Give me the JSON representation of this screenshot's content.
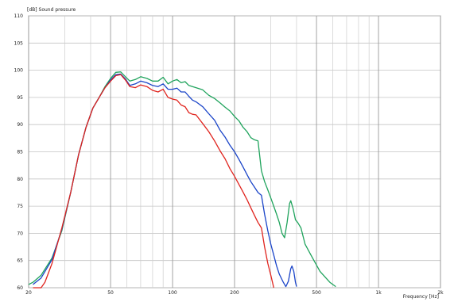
{
  "chart_data": {
    "type": "line",
    "ylabel": "[dB]  Sound pressure",
    "xlabel": "Frequency  [Hz]",
    "x_scale": "log",
    "xlim": [
      20,
      2000
    ],
    "ylim": [
      60,
      110
    ],
    "grid": true,
    "legend": "none",
    "y_ticks": [
      "110",
      "105",
      "100",
      "95",
      "90",
      "85",
      "80",
      "75",
      "70",
      "65",
      "60"
    ],
    "x_ticks": [
      {
        "value": 20,
        "label": "20"
      },
      {
        "value": 50,
        "label": "50"
      },
      {
        "value": 100,
        "label": "100"
      },
      {
        "value": 200,
        "label": "200"
      },
      {
        "value": 500,
        "label": "500"
      },
      {
        "value": 1000,
        "label": "1k"
      },
      {
        "value": 2000,
        "label": "2k"
      }
    ],
    "series": [
      {
        "color": "#1fa35c",
        "points": [
          [
            20,
            60.6
          ],
          [
            21,
            61.0
          ],
          [
            23,
            62.3
          ],
          [
            26,
            65.5
          ],
          [
            29,
            70.5
          ],
          [
            32,
            77.5
          ],
          [
            35,
            84.5
          ],
          [
            38,
            89.5
          ],
          [
            41,
            93.0
          ],
          [
            44,
            95.0
          ],
          [
            47,
            97.0
          ],
          [
            50,
            98.5
          ],
          [
            53,
            99.6
          ],
          [
            56,
            99.7
          ],
          [
            59,
            98.8
          ],
          [
            62,
            98.0
          ],
          [
            66,
            98.3
          ],
          [
            70,
            98.8
          ],
          [
            75,
            98.5
          ],
          [
            80,
            98.0
          ],
          [
            85,
            98.0
          ],
          [
            90,
            98.7
          ],
          [
            95,
            97.5
          ],
          [
            100,
            98.0
          ],
          [
            105,
            98.3
          ],
          [
            110,
            97.7
          ],
          [
            115,
            97.9
          ],
          [
            120,
            97.2
          ],
          [
            125,
            97.0
          ],
          [
            130,
            96.8
          ],
          [
            140,
            96.4
          ],
          [
            150,
            95.4
          ],
          [
            160,
            94.8
          ],
          [
            170,
            94.0
          ],
          [
            180,
            93.2
          ],
          [
            190,
            92.5
          ],
          [
            200,
            91.5
          ],
          [
            210,
            90.7
          ],
          [
            220,
            89.5
          ],
          [
            230,
            88.7
          ],
          [
            240,
            87.6
          ],
          [
            250,
            87.2
          ],
          [
            260,
            87.0
          ],
          [
            270,
            81.5
          ],
          [
            280,
            79.5
          ],
          [
            290,
            78.0
          ],
          [
            300,
            76.5
          ],
          [
            310,
            75.0
          ],
          [
            320,
            73.5
          ],
          [
            330,
            72.0
          ],
          [
            340,
            70.0
          ],
          [
            350,
            69.2
          ],
          [
            360,
            72.0
          ],
          [
            370,
            75.5
          ],
          [
            375,
            76.0
          ],
          [
            385,
            74.5
          ],
          [
            395,
            72.5
          ],
          [
            405,
            72.0
          ],
          [
            420,
            71.0
          ],
          [
            440,
            68.0
          ],
          [
            470,
            66.0
          ],
          [
            520,
            63.0
          ],
          [
            580,
            61.0
          ],
          [
            620,
            60.2
          ]
        ]
      },
      {
        "color": "#1a44c8",
        "points": [
          [
            21,
            60.6
          ],
          [
            23,
            61.8
          ],
          [
            26,
            65.2
          ],
          [
            29,
            70.8
          ],
          [
            32,
            77.5
          ],
          [
            35,
            84.5
          ],
          [
            38,
            89.5
          ],
          [
            41,
            93.0
          ],
          [
            44,
            95.0
          ],
          [
            47,
            96.8
          ],
          [
            50,
            98.2
          ],
          [
            53,
            99.2
          ],
          [
            56,
            99.3
          ],
          [
            59,
            98.4
          ],
          [
            62,
            97.2
          ],
          [
            66,
            97.5
          ],
          [
            70,
            98.0
          ],
          [
            75,
            97.7
          ],
          [
            80,
            97.2
          ],
          [
            85,
            97.0
          ],
          [
            90,
            97.5
          ],
          [
            95,
            96.5
          ],
          [
            100,
            96.5
          ],
          [
            105,
            96.7
          ],
          [
            110,
            96.0
          ],
          [
            115,
            96.0
          ],
          [
            120,
            95.2
          ],
          [
            125,
            94.5
          ],
          [
            130,
            94.2
          ],
          [
            140,
            93.3
          ],
          [
            150,
            92.0
          ],
          [
            160,
            90.8
          ],
          [
            170,
            89.0
          ],
          [
            180,
            87.7
          ],
          [
            190,
            86.2
          ],
          [
            200,
            85.0
          ],
          [
            210,
            83.6
          ],
          [
            220,
            82.2
          ],
          [
            230,
            80.8
          ],
          [
            240,
            79.5
          ],
          [
            250,
            78.5
          ],
          [
            260,
            77.5
          ],
          [
            270,
            77.0
          ],
          [
            280,
            73.5
          ],
          [
            290,
            70.5
          ],
          [
            300,
            68.0
          ],
          [
            310,
            66.0
          ],
          [
            320,
            64.0
          ],
          [
            330,
            62.5
          ],
          [
            345,
            61.0
          ],
          [
            355,
            60.2
          ],
          [
            365,
            61.2
          ],
          [
            375,
            63.5
          ],
          [
            380,
            64.0
          ],
          [
            388,
            63.0
          ],
          [
            395,
            61.0
          ],
          [
            400,
            60.2
          ]
        ]
      },
      {
        "color": "#e0241e",
        "points": [
          [
            21,
            60.0
          ],
          [
            23,
            60.0
          ],
          [
            24,
            61.0
          ],
          [
            26,
            64.5
          ],
          [
            29,
            71.0
          ],
          [
            32,
            77.5
          ],
          [
            35,
            84.5
          ],
          [
            38,
            89.5
          ],
          [
            41,
            93.0
          ],
          [
            44,
            95.0
          ],
          [
            47,
            96.8
          ],
          [
            50,
            98.0
          ],
          [
            53,
            99.0
          ],
          [
            56,
            99.2
          ],
          [
            59,
            98.2
          ],
          [
            62,
            97.0
          ],
          [
            66,
            96.8
          ],
          [
            70,
            97.3
          ],
          [
            75,
            97.0
          ],
          [
            80,
            96.3
          ],
          [
            85,
            96.0
          ],
          [
            90,
            96.5
          ],
          [
            95,
            95.0
          ],
          [
            100,
            94.7
          ],
          [
            105,
            94.5
          ],
          [
            110,
            93.6
          ],
          [
            115,
            93.3
          ],
          [
            120,
            92.2
          ],
          [
            125,
            91.9
          ],
          [
            130,
            91.8
          ],
          [
            140,
            90.2
          ],
          [
            150,
            88.7
          ],
          [
            160,
            87.0
          ],
          [
            170,
            85.2
          ],
          [
            180,
            83.7
          ],
          [
            190,
            81.9
          ],
          [
            200,
            80.5
          ],
          [
            210,
            79.0
          ],
          [
            220,
            77.6
          ],
          [
            230,
            76.2
          ],
          [
            240,
            74.7
          ],
          [
            250,
            73.3
          ],
          [
            260,
            72.0
          ],
          [
            270,
            71.0
          ],
          [
            280,
            67.5
          ],
          [
            290,
            64.5
          ],
          [
            300,
            62.3
          ],
          [
            310,
            60.0
          ]
        ]
      }
    ]
  }
}
